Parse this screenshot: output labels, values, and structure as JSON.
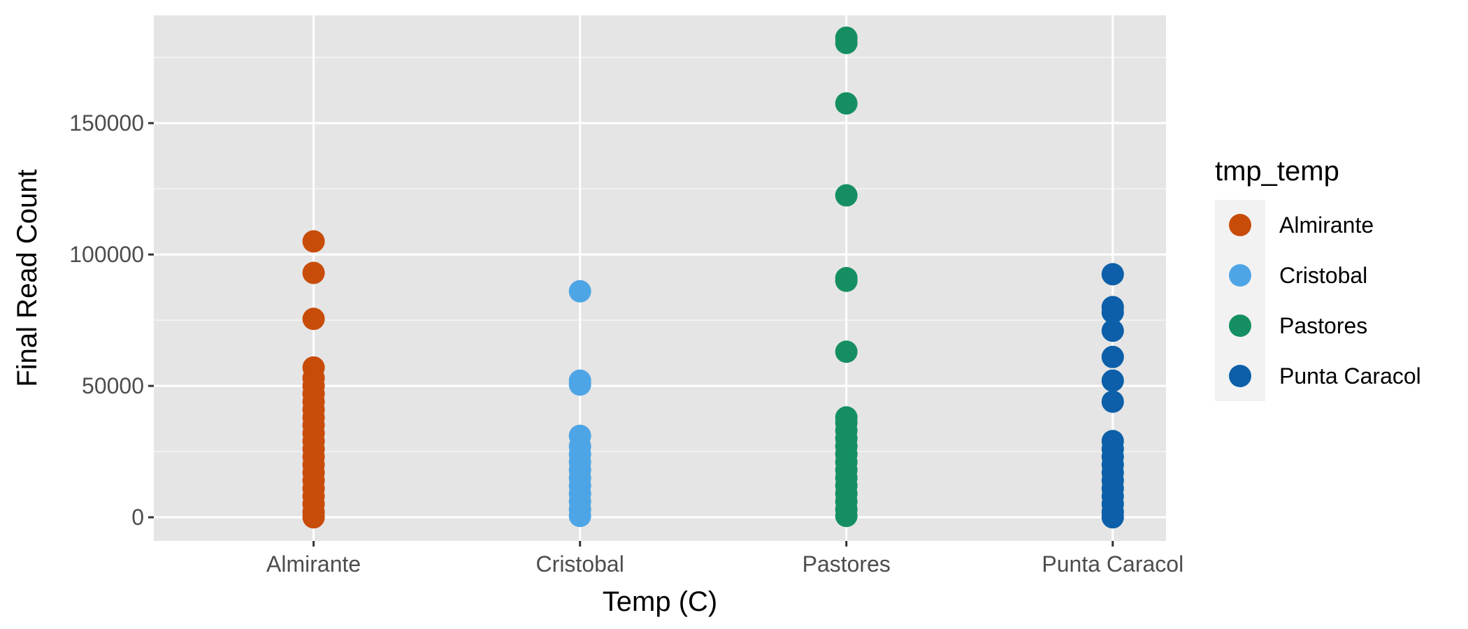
{
  "chart_data": {
    "type": "scatter",
    "title": "",
    "xlabel": "Temp (C)",
    "ylabel": "Final Read Count",
    "categories": [
      "Almirante",
      "Cristobal",
      "Pastores",
      "Punta Caracol"
    ],
    "y_ticks": [
      0,
      50000,
      100000,
      150000
    ],
    "y_tick_labels": [
      "0",
      "50000",
      "100000",
      "150000"
    ],
    "ylim": [
      -9000,
      191000
    ],
    "grid": true,
    "legend": {
      "title": "tmp_temp",
      "placement": "right",
      "entries": [
        "Almirante",
        "Cristobal",
        "Pastores",
        "Punta Caracol"
      ]
    },
    "series": [
      {
        "name": "Almirante",
        "color": "#C84C09",
        "values": [
          105000,
          93000,
          75500,
          57000,
          53000,
          50000,
          47000,
          44000,
          41000,
          38000,
          35000,
          32000,
          29000,
          26000,
          23000,
          20000,
          17000,
          14000,
          11000,
          8000,
          5000,
          2000,
          0
        ]
      },
      {
        "name": "Cristobal",
        "color": "#4EA5E5",
        "values": [
          86000,
          52000,
          50500,
          31000,
          27000,
          24000,
          21000,
          18000,
          15000,
          12000,
          9000,
          6000,
          3000,
          500
        ]
      },
      {
        "name": "Pastores",
        "color": "#158F62",
        "values": [
          182500,
          180500,
          157500,
          122500,
          91000,
          90000,
          63000,
          38000,
          36000,
          33000,
          30000,
          27000,
          24000,
          21000,
          18000,
          15000,
          12000,
          9000,
          6000,
          3000,
          500
        ]
      },
      {
        "name": "Punta Caracol",
        "color": "#0C5FA8",
        "values": [
          92500,
          80000,
          78000,
          71000,
          61000,
          52000,
          44000,
          29000,
          26000,
          23000,
          20000,
          17000,
          14000,
          11000,
          8000,
          5000,
          2000,
          0
        ]
      }
    ]
  }
}
